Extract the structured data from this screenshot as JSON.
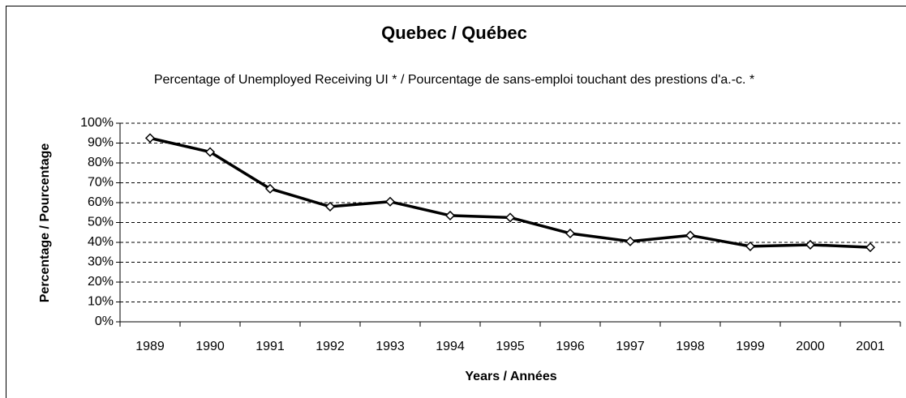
{
  "chart_data": {
    "type": "line",
    "title": "Quebec / Québec",
    "subtitle": "Percentage of Unemployed Receiving UI * / Pourcentage de sans-emploi touchant des prestions d'a.-c. *",
    "x_label": "Years / Années",
    "y_label": "Percentage / Pourcentage",
    "categories": [
      "1989",
      "1990",
      "1991",
      "1992",
      "1993",
      "1994",
      "1995",
      "1996",
      "1997",
      "1998",
      "1999",
      "2000",
      "2001"
    ],
    "series": [
      {
        "name": "Quebec",
        "color": "#000000",
        "values": [
          92.5,
          85.5,
          67,
          58,
          60.5,
          53.5,
          52.5,
          44.5,
          40.5,
          43.5,
          38,
          38.8,
          37.5
        ]
      }
    ],
    "ylim": [
      0,
      100
    ],
    "yticks": [
      {
        "value": 0,
        "label": "0%"
      },
      {
        "value": 10,
        "label": "10%"
      },
      {
        "value": 20,
        "label": "20%"
      },
      {
        "value": 30,
        "label": "30%"
      },
      {
        "value": 40,
        "label": "40%"
      },
      {
        "value": 50,
        "label": "50%"
      },
      {
        "value": 60,
        "label": "60%"
      },
      {
        "value": 70,
        "label": "70%"
      },
      {
        "value": 80,
        "label": "80%"
      },
      {
        "value": 90,
        "label": "90%"
      },
      {
        "value": 100,
        "label": "100%"
      }
    ],
    "grid": true
  }
}
